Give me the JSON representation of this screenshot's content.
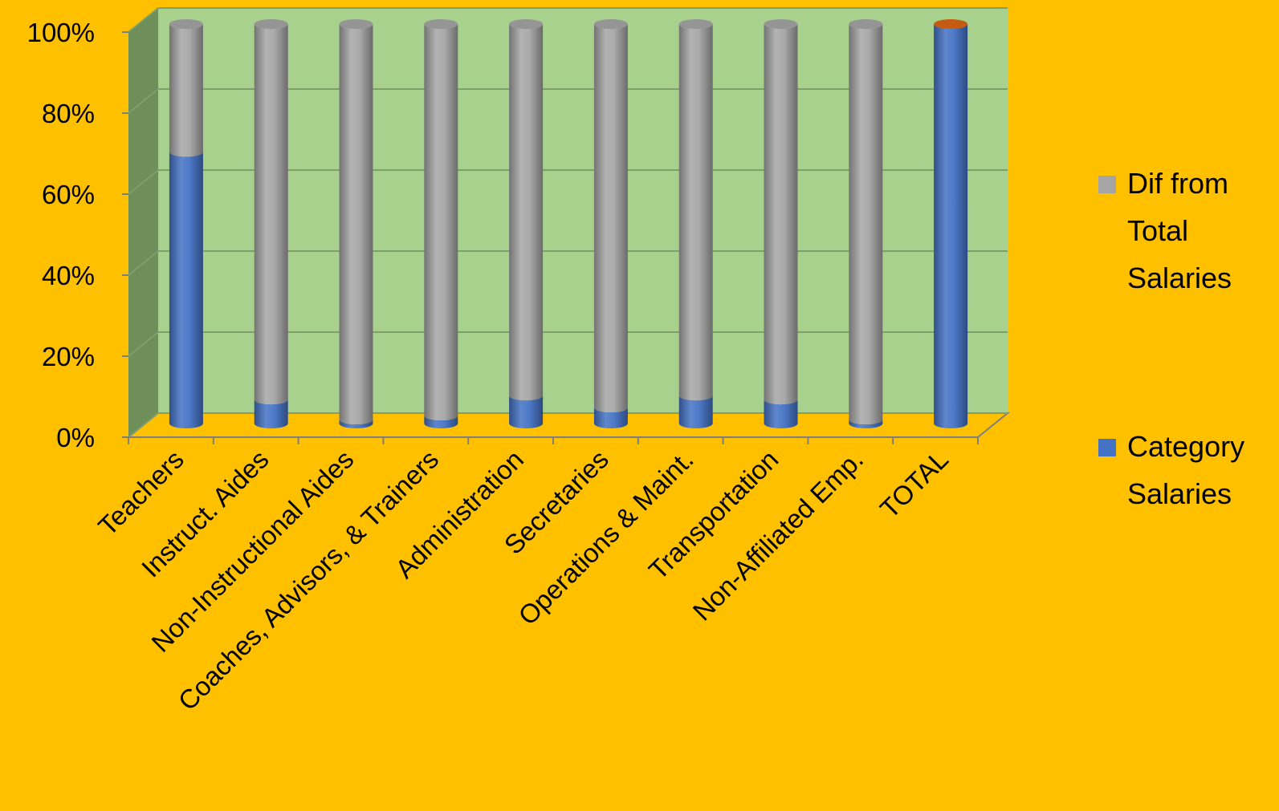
{
  "chart_data": {
    "type": "bar",
    "stacked": "percent",
    "style": "3d-cylinder",
    "categories": [
      "Teachers",
      "Instruct. Aides",
      "Non-Instructional Aides",
      "Coaches, Advisors, & Trainers",
      "Administration",
      "Secretaries",
      "Operations & Maint.",
      "Transportation",
      "Non-Affiliated Emp.",
      "TOTAL"
    ],
    "series": [
      {
        "name": "Category Salaries",
        "color": "#4472C4",
        "values": [
          68,
          6,
          1,
          2,
          7,
          4,
          7,
          6,
          1,
          100
        ]
      },
      {
        "name": "Dif from Total Salaries",
        "color": "#A5A5A5",
        "values": [
          32,
          94,
          99,
          98,
          93,
          96,
          93,
          94,
          99,
          0
        ]
      }
    ],
    "ylim": [
      0,
      100
    ],
    "yticks": [
      "0%",
      "20%",
      "40%",
      "60%",
      "80%",
      "100%"
    ],
    "legend_position": "right",
    "plot_colors": {
      "back_wall": "#A9D18E",
      "side_wall": "#6E8E5A",
      "page": "#FFC000",
      "total_cap": "#C55A11"
    }
  },
  "legend": {
    "items": [
      {
        "label_lines": [
          "Dif from",
          "Total",
          "Salaries"
        ]
      },
      {
        "label_lines": [
          "Category",
          "Salaries"
        ]
      }
    ]
  }
}
